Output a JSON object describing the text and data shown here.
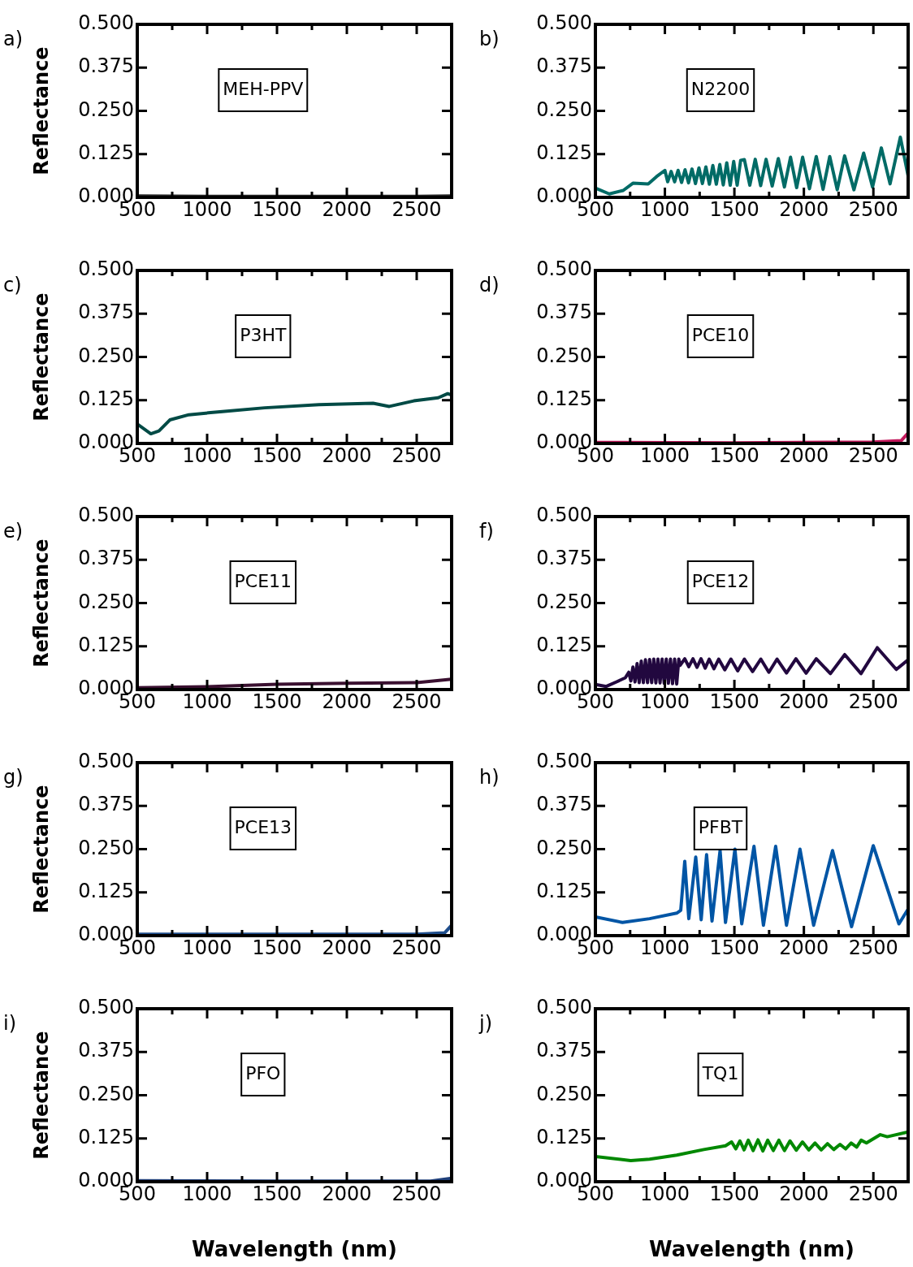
{
  "chart_data": [
    {
      "type": "line",
      "ylabel": "Reflectance",
      "xlim": [
        500,
        2750
      ],
      "ylim": [
        0,
        0.5
      ],
      "xticks": [
        500,
        {
          "value": 750,
          "label": null
        },
        1000,
        {
          "value": 1250,
          "label": null
        },
        1500,
        {
          "value": 1750,
          "label": null
        },
        2000,
        {
          "value": 2250,
          "label": null
        },
        2500
      ],
      "yticks": [
        {
          "value": 0,
          "label": "0.000"
        },
        {
          "value": 0.125,
          "label": "0.125"
        },
        {
          "value": 0.25,
          "label": "0.250"
        },
        {
          "value": 0.375,
          "label": "0.375"
        },
        {
          "value": 0.5,
          "label": "0.500"
        }
      ],
      "annotations": [
        "a)",
        "MEH-PPV"
      ],
      "series": [
        {
          "color": "#262626",
          "x": [
            500,
            1000,
            1500,
            2000,
            2500,
            2750
          ],
          "values": [
            0.004,
            0.003,
            0.003,
            0.003,
            0.003,
            0.004
          ]
        }
      ]
    },
    {
      "type": "line",
      "xlim": [
        500,
        2750
      ],
      "ylim": [
        0,
        0.5
      ],
      "xticks": [
        500,
        {
          "value": 750,
          "label": null
        },
        1000,
        {
          "value": 1250,
          "label": null
        },
        1500,
        {
          "value": 1750,
          "label": null
        },
        2000,
        {
          "value": 2250,
          "label": null
        },
        2500
      ],
      "yticks": [
        {
          "value": 0,
          "label": "0.000"
        },
        {
          "value": 0.125,
          "label": "0.125"
        },
        {
          "value": 0.25,
          "label": "0.250"
        },
        {
          "value": 0.375,
          "label": "0.375"
        },
        {
          "value": 0.5,
          "label": "0.500"
        }
      ],
      "annotations": [
        "b)",
        "N2200"
      ],
      "series": [
        {
          "color": "#006b66",
          "x": [
            500,
            600,
            700,
            770,
            880,
            940,
            1000,
            1020,
            1045,
            1070,
            1095,
            1120,
            1145,
            1170,
            1195,
            1220,
            1245,
            1270,
            1295,
            1320,
            1345,
            1370,
            1395,
            1420,
            1445,
            1470,
            1495,
            1520,
            1545,
            1572,
            1611,
            1650,
            1689,
            1728,
            1772,
            1816,
            1860,
            1904,
            1948,
            1991,
            2040,
            2089,
            2138,
            2186,
            2240,
            2293,
            2360,
            2430,
            2494,
            2557,
            2620,
            2694,
            2750
          ],
          "values": [
            0.027,
            0.01,
            0.02,
            0.041,
            0.039,
            0.06,
            0.078,
            0.045,
            0.075,
            0.045,
            0.078,
            0.043,
            0.08,
            0.042,
            0.082,
            0.04,
            0.085,
            0.04,
            0.088,
            0.038,
            0.092,
            0.038,
            0.095,
            0.036,
            0.1,
            0.035,
            0.104,
            0.035,
            0.107,
            0.109,
            0.035,
            0.11,
            0.034,
            0.11,
            0.033,
            0.112,
            0.03,
            0.116,
            0.028,
            0.116,
            0.025,
            0.118,
            0.023,
            0.118,
            0.022,
            0.12,
            0.022,
            0.128,
            0.03,
            0.143,
            0.039,
            0.174,
            0.062
          ]
        }
      ]
    },
    {
      "type": "line",
      "ylabel": "Reflectance",
      "xlim": [
        500,
        2750
      ],
      "ylim": [
        0,
        0.5
      ],
      "xticks": [
        500,
        {
          "value": 750,
          "label": null
        },
        1000,
        {
          "value": 1250,
          "label": null
        },
        1500,
        {
          "value": 1750,
          "label": null
        },
        2000,
        {
          "value": 2250,
          "label": null
        },
        2500
      ],
      "yticks": [
        {
          "value": 0,
          "label": "0.000"
        },
        {
          "value": 0.125,
          "label": "0.125"
        },
        {
          "value": 0.25,
          "label": "0.250"
        },
        {
          "value": 0.375,
          "label": "0.375"
        },
        {
          "value": 0.5,
          "label": "0.500"
        }
      ],
      "annotations": [
        "c)",
        "P3HT"
      ],
      "series": [
        {
          "color": "#004a45",
          "x": [
            500,
            597,
            655,
            733,
            869,
            1024,
            1412,
            1800,
            2188,
            2304,
            2479,
            2654,
            2722,
            2750
          ],
          "values": [
            0.056,
            0.028,
            0.036,
            0.068,
            0.083,
            0.089,
            0.103,
            0.112,
            0.116,
            0.107,
            0.123,
            0.132,
            0.144,
            0.14
          ]
        }
      ]
    },
    {
      "type": "line",
      "xlim": [
        500,
        2750
      ],
      "ylim": [
        0,
        0.5
      ],
      "xticks": [
        500,
        {
          "value": 750,
          "label": null
        },
        1000,
        {
          "value": 1250,
          "label": null
        },
        1500,
        {
          "value": 1750,
          "label": null
        },
        2000,
        {
          "value": 2250,
          "label": null
        },
        2500
      ],
      "yticks": [
        {
          "value": 0,
          "label": "0.000"
        },
        {
          "value": 0.125,
          "label": "0.125"
        },
        {
          "value": 0.25,
          "label": "0.250"
        },
        {
          "value": 0.375,
          "label": "0.375"
        },
        {
          "value": 0.5,
          "label": "0.500"
        }
      ],
      "annotations": [
        "d)",
        "PCE10"
      ],
      "series": [
        {
          "color": "#c2185b",
          "x": [
            500,
            1500,
            2500,
            2700,
            2750
          ],
          "values": [
            0.003,
            0.002,
            0.004,
            0.008,
            0.03
          ]
        }
      ]
    },
    {
      "type": "line",
      "ylabel": "Reflectance",
      "xlim": [
        500,
        2750
      ],
      "ylim": [
        0,
        0.5
      ],
      "xticks": [
        500,
        {
          "value": 750,
          "label": null
        },
        1000,
        {
          "value": 1250,
          "label": null
        },
        1500,
        {
          "value": 1750,
          "label": null
        },
        2000,
        {
          "value": 2250,
          "label": null
        },
        2500
      ],
      "yticks": [
        {
          "value": 0,
          "label": "0.000"
        },
        {
          "value": 0.125,
          "label": "0.125"
        },
        {
          "value": 0.25,
          "label": "0.250"
        },
        {
          "value": 0.375,
          "label": "0.375"
        },
        {
          "value": 0.5,
          "label": "0.500"
        }
      ],
      "annotations": [
        "e)",
        "PCE11"
      ],
      "series": [
        {
          "color": "#3a1030",
          "x": [
            500,
            1000,
            1500,
            2000,
            2500,
            2750
          ],
          "values": [
            0.005,
            0.008,
            0.015,
            0.018,
            0.02,
            0.03
          ]
        }
      ]
    },
    {
      "type": "line",
      "xlim": [
        500,
        2750
      ],
      "ylim": [
        0,
        0.5
      ],
      "xticks": [
        500,
        {
          "value": 750,
          "label": null
        },
        1000,
        {
          "value": 1250,
          "label": null
        },
        1500,
        {
          "value": 1750,
          "label": null
        },
        2000,
        {
          "value": 2250,
          "label": null
        },
        2500
      ],
      "yticks": [
        {
          "value": 0,
          "label": "0.000"
        },
        {
          "value": 0.125,
          "label": "0.125"
        },
        {
          "value": 0.25,
          "label": "0.250"
        },
        {
          "value": 0.375,
          "label": "0.375"
        },
        {
          "value": 0.5,
          "label": "0.500"
        }
      ],
      "annotations": [
        "f)",
        "PCE12"
      ],
      "series": [
        {
          "color": "#22083f",
          "x": [
            500,
            578,
            656,
            715,
            740,
            755,
            770,
            785,
            800,
            815,
            830,
            845,
            860,
            875,
            890,
            905,
            920,
            935,
            950,
            965,
            980,
            995,
            1010,
            1025,
            1040,
            1055,
            1070,
            1085,
            1100,
            1110,
            1143,
            1172,
            1202,
            1231,
            1260,
            1290,
            1319,
            1353,
            1387,
            1431,
            1475,
            1524,
            1572,
            1631,
            1690,
            1748,
            1807,
            1875,
            1943,
            2016,
            2089,
            2191,
            2294,
            2411,
            2528,
            2665,
            2750
          ],
          "values": [
            0.015,
            0.009,
            0.023,
            0.034,
            0.05,
            0.025,
            0.065,
            0.022,
            0.075,
            0.02,
            0.082,
            0.02,
            0.086,
            0.02,
            0.087,
            0.02,
            0.088,
            0.019,
            0.088,
            0.019,
            0.088,
            0.018,
            0.088,
            0.018,
            0.088,
            0.017,
            0.088,
            0.016,
            0.088,
            0.07,
            0.089,
            0.066,
            0.089,
            0.064,
            0.089,
            0.062,
            0.088,
            0.06,
            0.088,
            0.057,
            0.088,
            0.054,
            0.088,
            0.052,
            0.088,
            0.05,
            0.088,
            0.048,
            0.089,
            0.047,
            0.089,
            0.046,
            0.101,
            0.046,
            0.121,
            0.058,
            0.086
          ]
        }
      ]
    },
    {
      "type": "line",
      "ylabel": "Reflectance",
      "xlim": [
        500,
        2750
      ],
      "ylim": [
        0,
        0.5
      ],
      "xticks": [
        500,
        {
          "value": 750,
          "label": null
        },
        1000,
        {
          "value": 1250,
          "label": null
        },
        1500,
        {
          "value": 1750,
          "label": null
        },
        2000,
        {
          "value": 2250,
          "label": null
        },
        2500
      ],
      "yticks": [
        {
          "value": 0,
          "label": "0.000"
        },
        {
          "value": 0.125,
          "label": "0.125"
        },
        {
          "value": 0.25,
          "label": "0.250"
        },
        {
          "value": 0.375,
          "label": "0.375"
        },
        {
          "value": 0.5,
          "label": "0.500"
        }
      ],
      "annotations": [
        "g)",
        "PCE13"
      ],
      "series": [
        {
          "color": "#1f4e8c",
          "x": [
            500,
            1500,
            2500,
            2700,
            2750
          ],
          "values": [
            0.004,
            0.004,
            0.004,
            0.008,
            0.03
          ]
        }
      ]
    },
    {
      "type": "line",
      "xlim": [
        500,
        2750
      ],
      "ylim": [
        0,
        0.5
      ],
      "xticks": [
        500,
        {
          "value": 750,
          "label": null
        },
        1000,
        {
          "value": 1250,
          "label": null
        },
        1500,
        {
          "value": 1750,
          "label": null
        },
        2000,
        {
          "value": 2250,
          "label": null
        },
        2500
      ],
      "yticks": [
        {
          "value": 0,
          "label": "0.000"
        },
        {
          "value": 0.125,
          "label": "0.125"
        },
        {
          "value": 0.25,
          "label": "0.250"
        },
        {
          "value": 0.375,
          "label": "0.375"
        },
        {
          "value": 0.5,
          "label": "0.500"
        }
      ],
      "annotations": [
        "h)",
        "PFBT"
      ],
      "series": [
        {
          "color": "#0055a5",
          "x": [
            500,
            695,
            890,
            1085,
            1114,
            1143,
            1172,
            1222,
            1261,
            1300,
            1339,
            1397,
            1436,
            1504,
            1553,
            1641,
            1709,
            1797,
            1875,
            1972,
            2070,
            2206,
            2343,
            2499,
            2684,
            2750
          ],
          "values": [
            0.054,
            0.038,
            0.049,
            0.065,
            0.073,
            0.215,
            0.049,
            0.227,
            0.046,
            0.234,
            0.042,
            0.246,
            0.038,
            0.25,
            0.034,
            0.258,
            0.03,
            0.258,
            0.03,
            0.25,
            0.03,
            0.246,
            0.026,
            0.26,
            0.034,
            0.077
          ]
        }
      ]
    },
    {
      "type": "line",
      "ylabel": "Reflectance",
      "xlabel": "Wavelength (nm)",
      "xlim": [
        500,
        2750
      ],
      "ylim": [
        0,
        0.5
      ],
      "xticks": [
        500,
        {
          "value": 750,
          "label": null
        },
        1000,
        {
          "value": 1250,
          "label": null
        },
        1500,
        {
          "value": 1750,
          "label": null
        },
        2000,
        {
          "value": 2250,
          "label": null
        },
        2500
      ],
      "yticks": [
        {
          "value": 0,
          "label": "0.000"
        },
        {
          "value": 0.125,
          "label": "0.125"
        },
        {
          "value": 0.25,
          "label": "0.250"
        },
        {
          "value": 0.375,
          "label": "0.375"
        },
        {
          "value": 0.5,
          "label": "0.500"
        }
      ],
      "annotations": [
        "i)",
        "PFO"
      ],
      "series": [
        {
          "color": "#1f3f7a",
          "x": [
            500,
            1500,
            2600,
            2750
          ],
          "values": [
            0.003,
            0.002,
            0.002,
            0.01
          ]
        }
      ]
    },
    {
      "type": "line",
      "xlabel": "Wavelength (nm)",
      "xlim": [
        500,
        2750
      ],
      "ylim": [
        0,
        0.5
      ],
      "xticks": [
        500,
        {
          "value": 750,
          "label": null
        },
        1000,
        {
          "value": 1250,
          "label": null
        },
        1500,
        {
          "value": 1750,
          "label": null
        },
        2000,
        {
          "value": 2250,
          "label": null
        },
        2500
      ],
      "yticks": [
        {
          "value": 0,
          "label": "0.000"
        },
        {
          "value": 0.125,
          "label": "0.125"
        },
        {
          "value": 0.25,
          "label": "0.250"
        },
        {
          "value": 0.375,
          "label": "0.375"
        },
        {
          "value": 0.5,
          "label": "0.500"
        }
      ],
      "annotations": [
        "j)",
        "TQ1"
      ],
      "series": [
        {
          "color": "#008800",
          "x": [
            500,
            754,
            890,
            1085,
            1280,
            1436,
            1480,
            1510,
            1540,
            1570,
            1600,
            1635,
            1670,
            1705,
            1740,
            1780,
            1820,
            1860,
            1900,
            1945,
            1990,
            2035,
            2080,
            2125,
            2170,
            2215,
            2260,
            2300,
            2340,
            2380,
            2412,
            2450,
            2550,
            2600,
            2750
          ],
          "values": [
            0.073,
            0.061,
            0.065,
            0.077,
            0.093,
            0.104,
            0.115,
            0.095,
            0.118,
            0.092,
            0.12,
            0.09,
            0.121,
            0.089,
            0.12,
            0.09,
            0.12,
            0.09,
            0.118,
            0.091,
            0.115,
            0.092,
            0.112,
            0.092,
            0.11,
            0.093,
            0.108,
            0.095,
            0.112,
            0.1,
            0.12,
            0.112,
            0.136,
            0.13,
            0.144
          ]
        }
      ]
    }
  ]
}
